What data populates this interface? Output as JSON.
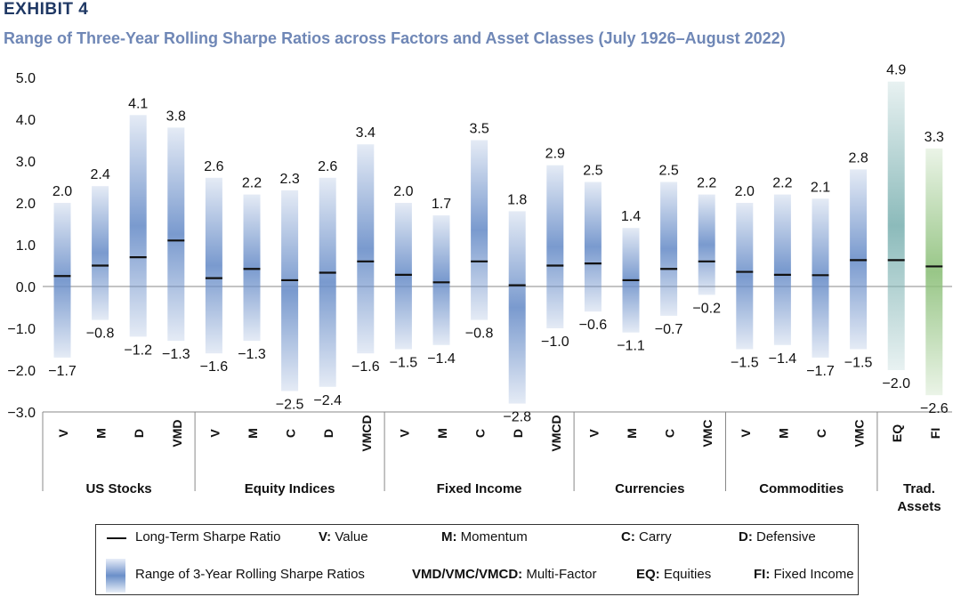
{
  "header": {
    "exhibit": "EXHIBIT 4",
    "title": "Range of Three-Year Rolling Sharpe Ratios across Factors and Asset Classes (July 1926–August 2022)"
  },
  "colors": {
    "factor_bar": "#6b8fc9",
    "equities_bar": "#7fb3b3",
    "fixed_income_bar": "#8dc07a",
    "median_line": "#111111"
  },
  "chart_data": {
    "type": "bar",
    "subtype": "range-with-marker",
    "ylim": [
      -3.0,
      5.0
    ],
    "yticks": [
      "5.0",
      "4.0",
      "3.0",
      "2.0",
      "1.0",
      "0.0",
      "-1.0",
      "-2.0",
      "-3.0"
    ],
    "groups": [
      {
        "name": "US Stocks",
        "bars": [
          {
            "label": "V",
            "max": 2.0,
            "min": -1.7,
            "lt": 0.25
          },
          {
            "label": "M",
            "max": 2.4,
            "min": -0.8,
            "lt": 0.5
          },
          {
            "label": "D",
            "max": 4.1,
            "min": -1.2,
            "lt": 0.7
          },
          {
            "label": "VMD",
            "max": 3.8,
            "min": -1.3,
            "lt": 1.1
          }
        ]
      },
      {
        "name": "Equity Indices",
        "bars": [
          {
            "label": "V",
            "max": 2.6,
            "min": -1.6,
            "lt": 0.2
          },
          {
            "label": "M",
            "max": 2.2,
            "min": -1.3,
            "lt": 0.42
          },
          {
            "label": "C",
            "max": 2.3,
            "min": -2.5,
            "lt": 0.15
          },
          {
            "label": "D",
            "max": 2.6,
            "min": -2.4,
            "lt": 0.33
          },
          {
            "label": "VMCD",
            "max": 3.4,
            "min": -1.6,
            "lt": 0.6
          }
        ]
      },
      {
        "name": "Fixed Income",
        "bars": [
          {
            "label": "V",
            "max": 2.0,
            "min": -1.5,
            "lt": 0.28
          },
          {
            "label": "M",
            "max": 1.7,
            "min": -1.4,
            "lt": 0.1
          },
          {
            "label": "C",
            "max": 3.5,
            "min": -0.8,
            "lt": 0.6
          },
          {
            "label": "D",
            "max": 1.8,
            "min": -2.8,
            "lt": 0.03
          },
          {
            "label": "VMCD",
            "max": 2.9,
            "min": -1.0,
            "lt": 0.5
          }
        ]
      },
      {
        "name": "Currencies",
        "bars": [
          {
            "label": "V",
            "max": 2.5,
            "min": -0.6,
            "lt": 0.55
          },
          {
            "label": "M",
            "max": 1.4,
            "min": -1.1,
            "lt": 0.15
          },
          {
            "label": "C",
            "max": 2.5,
            "min": -0.7,
            "lt": 0.42
          },
          {
            "label": "VMC",
            "max": 2.2,
            "min": -0.2,
            "lt": 0.6
          }
        ]
      },
      {
        "name": "Commodities",
        "bars": [
          {
            "label": "V",
            "max": 2.0,
            "min": -1.5,
            "lt": 0.35
          },
          {
            "label": "M",
            "max": 2.2,
            "min": -1.4,
            "lt": 0.28
          },
          {
            "label": "C",
            "max": 2.1,
            "min": -1.7,
            "lt": 0.27
          },
          {
            "label": "VMC",
            "max": 2.8,
            "min": -1.5,
            "lt": 0.63
          }
        ]
      },
      {
        "name": "Trad. Assets",
        "bars": [
          {
            "label": "EQ",
            "max": 4.9,
            "min": -2.0,
            "lt": 0.63,
            "color": "equities"
          },
          {
            "label": "FI",
            "max": 3.3,
            "min": -2.6,
            "lt": 0.48,
            "color": "fixed_income"
          }
        ]
      }
    ],
    "legend": [
      {
        "key": "",
        "text": "Long-Term Sharpe Ratio"
      },
      {
        "key": "V:",
        "text": " Value"
      },
      {
        "key": "M:",
        "text": " Momentum"
      },
      {
        "key": "C:",
        "text": " Carry"
      },
      {
        "key": "D:",
        "text": " Defensive"
      },
      {
        "key": "",
        "text": "Range of 3-Year Rolling Sharpe Ratios"
      },
      {
        "key": "VMD/VMC/VMCD:",
        "text": " Multi-Factor"
      },
      {
        "key": "EQ:",
        "text": " Equities"
      },
      {
        "key": "FI:",
        "text": " Fixed Income"
      }
    ]
  }
}
